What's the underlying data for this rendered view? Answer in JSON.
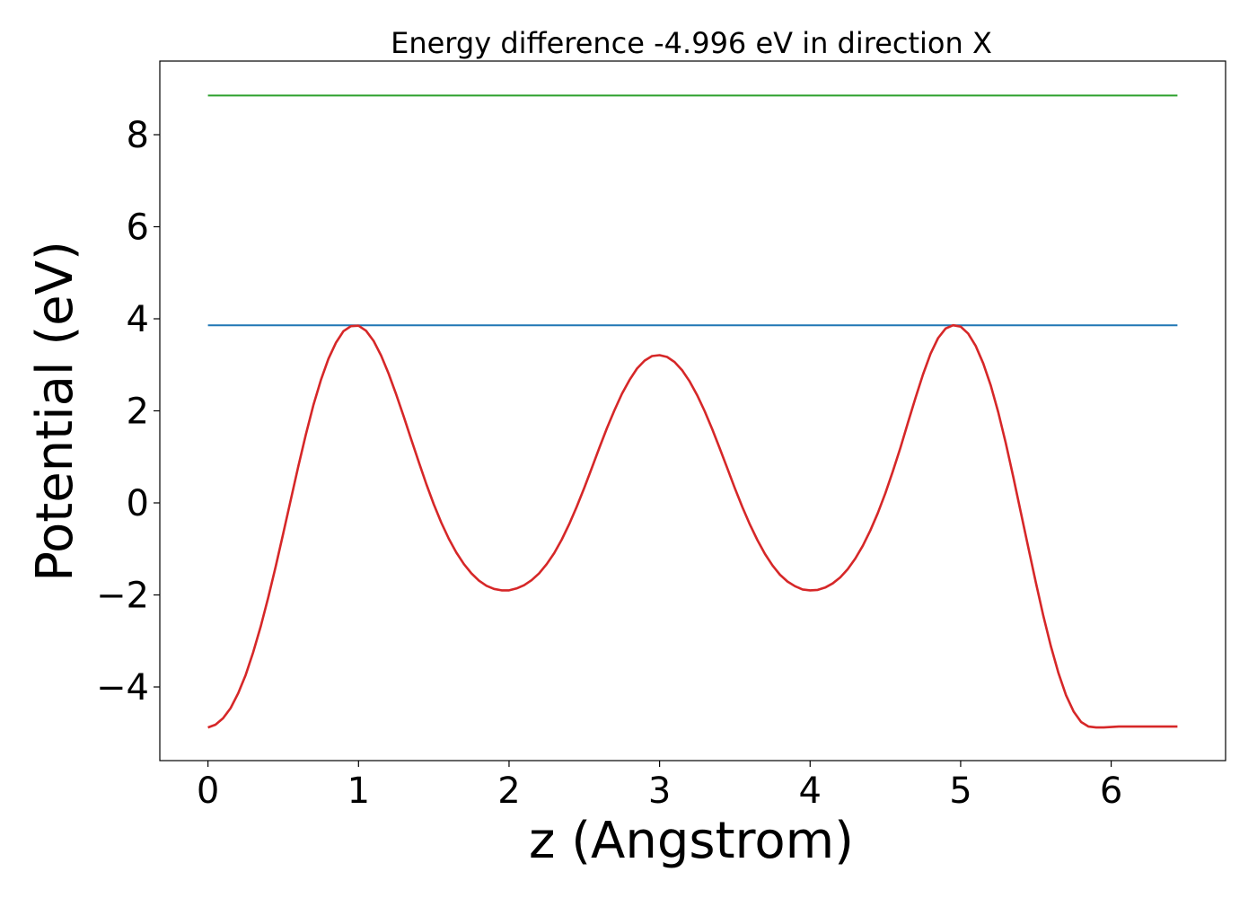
{
  "chart_data": {
    "type": "line",
    "title": "Energy difference -4.996 eV in direction X",
    "xlabel": "z (Angstrom)",
    "ylabel": "Potential (eV)",
    "xlim": [
      -0.32,
      6.76
    ],
    "ylim": [
      -5.6,
      9.6
    ],
    "xticks": [
      0,
      1,
      2,
      3,
      4,
      5,
      6
    ],
    "yticks": [
      -4,
      -2,
      0,
      2,
      4,
      6,
      8
    ],
    "ytick_labels": [
      "−4",
      "−2",
      "0",
      "2",
      "4",
      "6",
      "8"
    ],
    "grid": false,
    "legend": "none",
    "series": [
      {
        "color": "#2ca02c",
        "x": [
          0,
          6.44
        ],
        "y": [
          8.85,
          8.85
        ]
      },
      {
        "color": "#1f77b4",
        "x": [
          0,
          6.44
        ],
        "y": [
          3.86,
          3.86
        ]
      },
      {
        "color": "#d62728",
        "x": [
          0,
          0.05,
          0.1,
          0.15,
          0.2,
          0.25,
          0.3,
          0.35,
          0.4,
          0.45,
          0.5,
          0.55,
          0.6,
          0.65,
          0.7,
          0.75,
          0.8,
          0.85,
          0.9,
          0.95,
          1.0,
          1.05,
          1.1,
          1.15,
          1.2,
          1.25,
          1.3,
          1.35,
          1.4,
          1.45,
          1.5,
          1.55,
          1.6,
          1.65,
          1.7,
          1.75,
          1.8,
          1.85,
          1.9,
          1.95,
          2.0,
          2.05,
          2.1,
          2.15,
          2.2,
          2.25,
          2.3,
          2.35,
          2.4,
          2.45,
          2.5,
          2.55,
          2.6,
          2.65,
          2.7,
          2.75,
          2.8,
          2.85,
          2.9,
          2.95,
          3.0,
          3.05,
          3.1,
          3.15,
          3.2,
          3.25,
          3.3,
          3.35,
          3.4,
          3.45,
          3.5,
          3.55,
          3.6,
          3.65,
          3.7,
          3.75,
          3.8,
          3.85,
          3.9,
          3.95,
          4.0,
          4.05,
          4.1,
          4.15,
          4.2,
          4.25,
          4.3,
          4.35,
          4.4,
          4.45,
          4.5,
          4.55,
          4.6,
          4.65,
          4.7,
          4.75,
          4.8,
          4.85,
          4.9,
          4.95,
          5.0,
          5.05,
          5.1,
          5.15,
          5.2,
          5.25,
          5.3,
          5.35,
          5.4,
          5.45,
          5.5,
          5.55,
          5.6,
          5.65,
          5.7,
          5.75,
          5.8,
          5.85,
          5.9,
          5.95,
          6.0,
          6.05,
          6.1,
          6.15,
          6.2,
          6.25,
          6.3,
          6.35,
          6.4,
          6.44
        ],
        "y": [
          -4.88,
          -4.82,
          -4.68,
          -4.46,
          -4.14,
          -3.74,
          -3.25,
          -2.69,
          -2.06,
          -1.38,
          -0.66,
          0.07,
          0.79,
          1.48,
          2.12,
          2.67,
          3.13,
          3.48,
          3.73,
          3.84,
          3.85,
          3.74,
          3.52,
          3.2,
          2.81,
          2.36,
          1.88,
          1.38,
          0.89,
          0.41,
          -0.03,
          -0.43,
          -0.78,
          -1.08,
          -1.33,
          -1.53,
          -1.69,
          -1.8,
          -1.87,
          -1.9,
          -1.9,
          -1.86,
          -1.79,
          -1.68,
          -1.53,
          -1.33,
          -1.09,
          -0.8,
          -0.46,
          -0.08,
          0.33,
          0.76,
          1.2,
          1.62,
          2.01,
          2.37,
          2.67,
          2.92,
          3.09,
          3.19,
          3.21,
          3.17,
          3.06,
          2.88,
          2.64,
          2.34,
          1.99,
          1.6,
          1.18,
          0.75,
          0.32,
          -0.09,
          -0.47,
          -0.81,
          -1.11,
          -1.36,
          -1.56,
          -1.71,
          -1.81,
          -1.88,
          -1.9,
          -1.89,
          -1.84,
          -1.75,
          -1.62,
          -1.44,
          -1.21,
          -0.93,
          -0.6,
          -0.22,
          0.21,
          0.69,
          1.2,
          1.74,
          2.28,
          2.79,
          3.24,
          3.58,
          3.79,
          3.86,
          3.83,
          3.68,
          3.41,
          3.03,
          2.55,
          1.97,
          1.3,
          0.56,
          -0.21,
          -0.98,
          -1.74,
          -2.46,
          -3.12,
          -3.7,
          -4.18,
          -4.53,
          -4.76,
          -4.86,
          -4.88,
          -4.88,
          -4.87,
          -4.86,
          -4.86,
          -4.86,
          -4.86,
          -4.86,
          -4.86,
          -4.86,
          -4.86,
          -4.86
        ]
      }
    ]
  }
}
